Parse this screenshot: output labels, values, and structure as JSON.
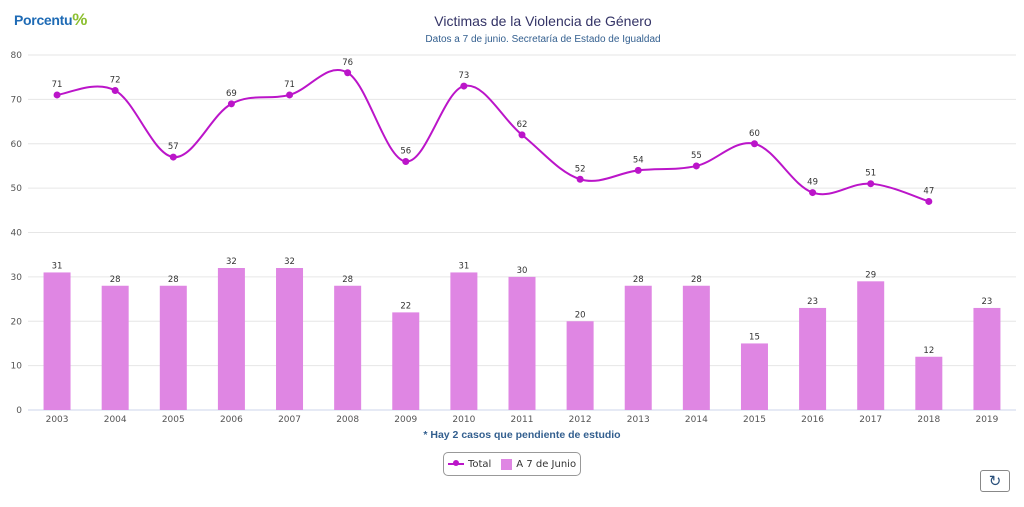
{
  "logo": {
    "text": "Porcentu",
    "mark": "%"
  },
  "chart_data": {
    "type": "bar+line",
    "title": "Victimas de la Violencia de Género",
    "subtitle": "Datos a 7 de junio. Secretaría de Estado de Igualdad",
    "note": "* Hay 2 casos que pendiente de estudio",
    "categories": [
      "2003",
      "2004",
      "2005",
      "2006",
      "2007",
      "2008",
      "2009",
      "2010",
      "2011",
      "2012",
      "2013",
      "2014",
      "2015",
      "2016",
      "2017",
      "2018",
      "2019"
    ],
    "series": [
      {
        "name": "Total",
        "type": "line",
        "color": "#bb15c9",
        "values": [
          71,
          72,
          57,
          69,
          71,
          76,
          56,
          73,
          62,
          52,
          54,
          55,
          60,
          49,
          51,
          47,
          null
        ]
      },
      {
        "name": "A 7 de Junio",
        "type": "bar",
        "color": "#df86e3",
        "values": [
          31,
          28,
          28,
          32,
          32,
          28,
          22,
          31,
          30,
          20,
          28,
          28,
          15,
          23,
          29,
          12,
          23
        ]
      }
    ],
    "ylim": [
      0,
      80
    ],
    "yticks": [
      0,
      10,
      20,
      30,
      40,
      50,
      60,
      70,
      80
    ],
    "grid": true,
    "legend": "bottom-center"
  },
  "refresh_icon": "refresh-icon"
}
